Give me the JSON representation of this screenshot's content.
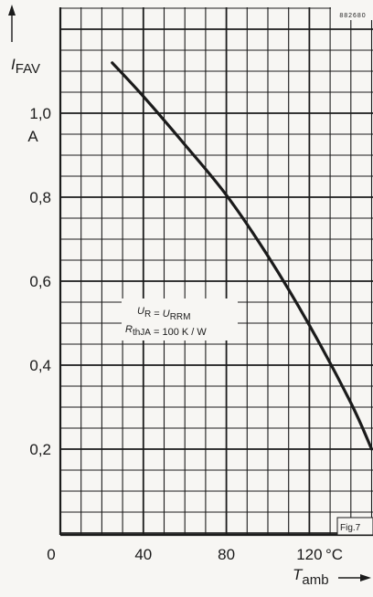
{
  "chart_data": {
    "type": "line",
    "figure_code": "882680",
    "figure_label": "Fig.7",
    "ylabel": {
      "symbol": "I",
      "subscript": "FAV",
      "unit": "A"
    },
    "xlabel": {
      "symbol": "T",
      "subscript": "amb",
      "unit": "°C"
    },
    "xlim": [
      0,
      150
    ],
    "ylim": [
      0,
      1.3
    ],
    "x_ticks": [
      "0",
      "40",
      "80",
      "120"
    ],
    "y_ticks": [
      "0,2",
      "0,4",
      "0,6",
      "0,8",
      "1,0"
    ],
    "grid": true,
    "annotations": [
      {
        "parts": [
          [
            "U",
            "R"
          ],
          " = ",
          [
            "U",
            "RRM"
          ]
        ]
      },
      {
        "parts": [
          [
            "R",
            "thJA"
          ],
          " = 100 K / W"
        ]
      }
    ],
    "series": [
      {
        "x": [
          25,
          40,
          60,
          80,
          100,
          120,
          140,
          150
        ],
        "y": [
          1.12,
          1.04,
          0.925,
          0.805,
          0.66,
          0.495,
          0.31,
          0.2
        ]
      }
    ]
  }
}
